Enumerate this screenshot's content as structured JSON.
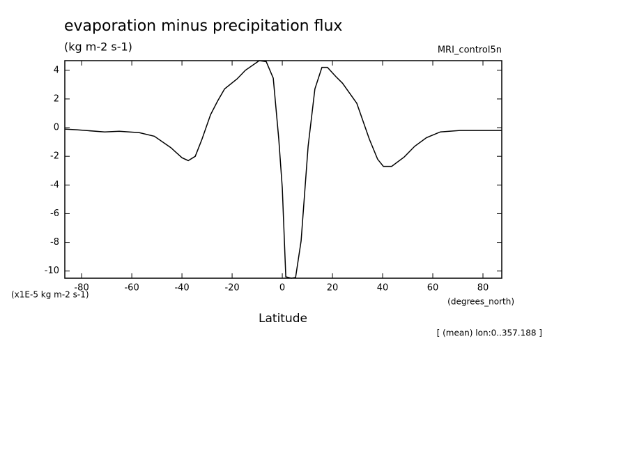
{
  "chart_data": {
    "type": "line",
    "title": "evaporation minus precipitation flux",
    "subtitle": "(kg m-2 s-1)",
    "dataset": "MRI_control5n",
    "y_units": "(x1E-5 kg m-2 s-1)",
    "x_units": "(degrees_north)",
    "x_label": "Latitude",
    "annotation": "[ (mean) lon:0..357.188 ]",
    "x": [
      -86.7,
      -82,
      -70.8,
      -65,
      -57,
      -51,
      -44.4,
      -40,
      -37.5,
      -34.7,
      -32,
      -28.6,
      -25.8,
      -23,
      -18,
      -14.7,
      -9.2,
      -6.4,
      -3.6,
      -1.4,
      0,
      1.4,
      3.6,
      5.3,
      7.5,
      10.3,
      13,
      15.8,
      18,
      21.4,
      24,
      29.7,
      34.7,
      38,
      40.3,
      43.6,
      48.6,
      52.8,
      57.5,
      63,
      70.8,
      87.5
    ],
    "series": [
      {
        "name": "MRI_control5n",
        "color": "#000000",
        "values": [
          -0.1,
          -0.15,
          -0.3,
          -0.25,
          -0.35,
          -0.6,
          -1.4,
          -2.1,
          -2.3,
          -2.0,
          -0.8,
          0.9,
          1.85,
          2.7,
          3.4,
          4.0,
          4.67,
          4.6,
          3.45,
          -0.8,
          -4.2,
          -10.4,
          -10.5,
          -10.45,
          -7.9,
          -1.3,
          2.7,
          4.2,
          4.2,
          3.55,
          3.1,
          1.7,
          -0.8,
          -2.2,
          -2.7,
          -2.7,
          -2.05,
          -1.3,
          -0.7,
          -0.3,
          -0.2,
          -0.2
        ]
      }
    ],
    "xlim": [
      -86.7,
      87.5
    ],
    "xticks": [
      -80,
      -60,
      -40,
      -20,
      0,
      20,
      40,
      60,
      80
    ],
    "ylim": [
      -10.5,
      4.67
    ],
    "yticks": [
      -10,
      -8,
      -6,
      -4,
      -2,
      0,
      2,
      4
    ]
  }
}
